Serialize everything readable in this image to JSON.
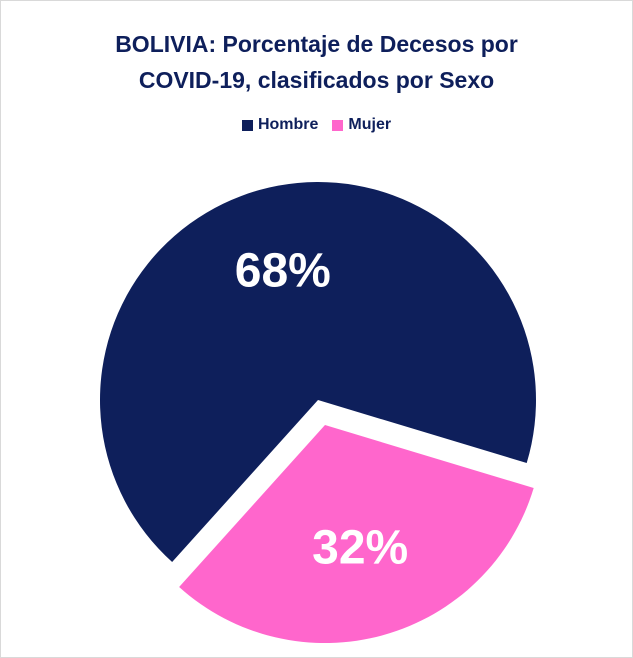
{
  "chart_data": {
    "type": "pie",
    "title": "BOLIVIA: Porcentaje de Decesos por COVID-19, clasificados por Sexo",
    "categories": [
      "Hombre",
      "Mujer"
    ],
    "values": [
      68,
      32
    ],
    "value_labels": [
      "68%",
      "32%"
    ],
    "colors": [
      "#0e1f5b",
      "#ff66cc"
    ],
    "legend": "top"
  }
}
